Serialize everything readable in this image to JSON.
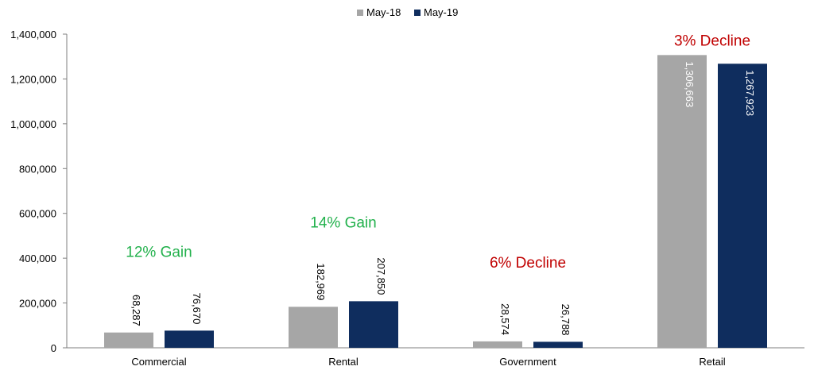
{
  "chart_data": {
    "type": "bar",
    "categories": [
      "Commercial",
      "Rental",
      "Government",
      "Retail"
    ],
    "series": [
      {
        "name": "May-18",
        "color": "#a6a6a6",
        "values": [
          68287,
          182969,
          28574,
          1306663
        ],
        "labels": [
          "68,287",
          "182,969",
          "28,574",
          "1,306,663"
        ]
      },
      {
        "name": "May-19",
        "color": "#0f2d5e",
        "values": [
          76670,
          207850,
          26788,
          1267923
        ],
        "labels": [
          "76,670",
          "207,850",
          "26,788",
          "1,267,923"
        ]
      }
    ],
    "ylim": [
      0,
      1400000
    ],
    "yticks": [
      0,
      200000,
      400000,
      600000,
      800000,
      1000000,
      1200000,
      1400000
    ],
    "ytick_labels": [
      "0",
      "200,000",
      "400,000",
      "600,000",
      "800,000",
      "1,000,000",
      "1,200,000",
      "1,400,000"
    ],
    "annotations": [
      {
        "category": "Commercial",
        "text": "12% Gain",
        "color": "#22b14c"
      },
      {
        "category": "Rental",
        "text": "14% Gain",
        "color": "#22b14c"
      },
      {
        "category": "Government",
        "text": "6% Decline",
        "color": "#c00000"
      },
      {
        "category": "Retail",
        "text": "3% Decline",
        "color": "#c00000"
      }
    ],
    "grid": false,
    "legend_position": "top-center",
    "title": "",
    "xlabel": "",
    "ylabel": ""
  }
}
